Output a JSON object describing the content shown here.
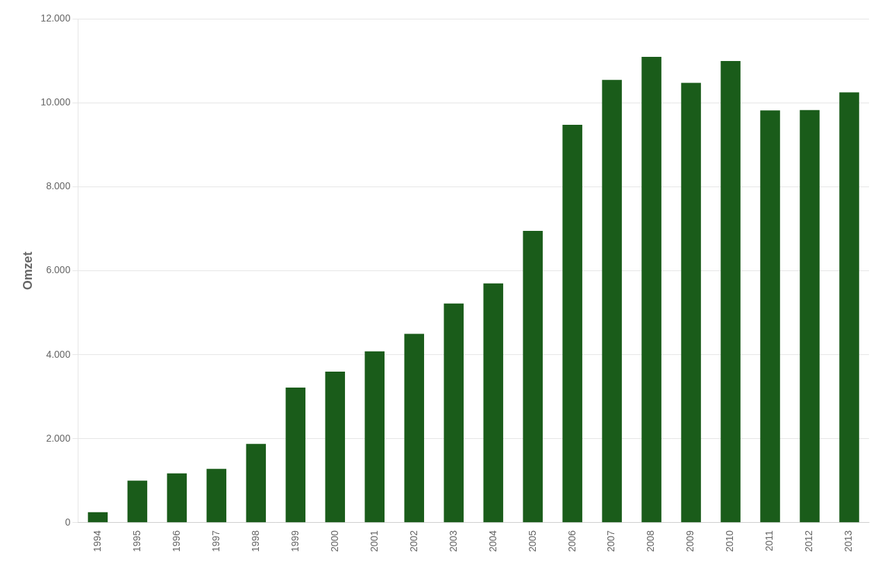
{
  "chart_data": {
    "type": "bar",
    "ylabel": "Omzet",
    "categories": [
      "1994",
      "1995",
      "1996",
      "1997",
      "1998",
      "1999",
      "2000",
      "2001",
      "2002",
      "2003",
      "2004",
      "2005",
      "2006",
      "2007",
      "2008",
      "2009",
      "2010",
      "2011",
      "2012",
      "2013"
    ],
    "values": [
      250,
      1000,
      1175,
      1280,
      1875,
      3220,
      3600,
      4080,
      4500,
      5220,
      5700,
      6950,
      9480,
      10550,
      11100,
      10480,
      11000,
      9820,
      9830,
      10250
    ],
    "color": "#1a5c1a",
    "ylim": [
      0,
      12000
    ],
    "yticks": [
      0,
      {
        "value": 2000,
        "label": "2.000"
      },
      {
        "value": 4000,
        "label": "4.000"
      },
      {
        "value": 6000,
        "label": "6.000"
      },
      {
        "value": 8000,
        "label": "8.000"
      },
      {
        "value": 10000,
        "label": "10.000"
      },
      {
        "value": 12000,
        "label": "12.000"
      }
    ],
    "grid": true
  }
}
